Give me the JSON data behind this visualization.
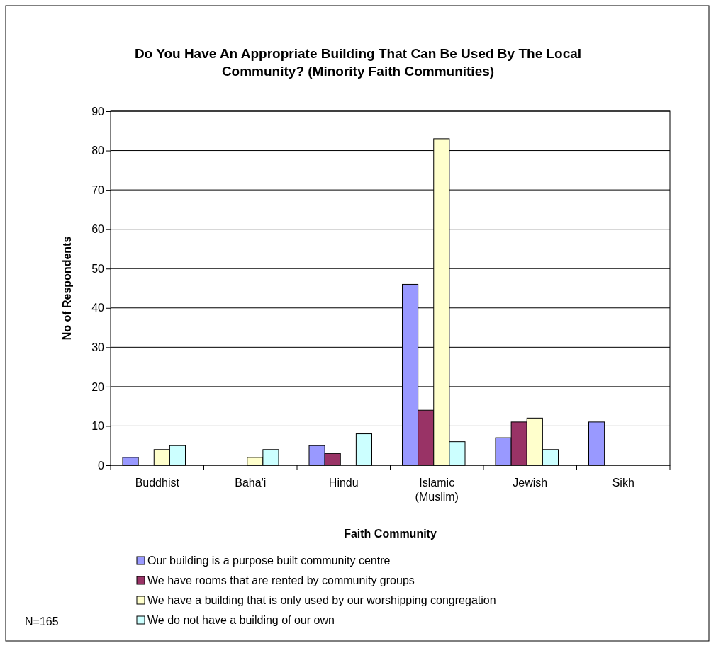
{
  "chart_data": {
    "type": "bar",
    "title": "Do You Have An Appropriate Building That Can Be Used By The Local Community? (Minority Faith Communities)",
    "xlabel": "Faith Community",
    "ylabel": "No of Respondents",
    "categories": [
      "Buddhist",
      "Baha'i",
      "Hindu",
      "Islamic (Muslim)",
      "Jewish",
      "Sikh"
    ],
    "series": [
      {
        "name": "Our building is a purpose built community centre",
        "color": "#9999ff",
        "values": [
          2,
          0,
          5,
          46,
          7,
          11
        ]
      },
      {
        "name": "We have rooms that are rented by community groups",
        "color": "#993366",
        "values": [
          0,
          0,
          3,
          14,
          11,
          0
        ]
      },
      {
        "name": "We have a building that is only used by our worshipping congregation",
        "color": "#ffffcc",
        "values": [
          4,
          2,
          0,
          83,
          12,
          0
        ]
      },
      {
        "name": "We do not have a building of our own",
        "color": "#ccffff",
        "values": [
          5,
          4,
          8,
          6,
          4,
          0
        ]
      }
    ],
    "ylim": [
      0,
      90
    ],
    "yticks": [
      0,
      10,
      20,
      30,
      40,
      50,
      60,
      70,
      80,
      90
    ],
    "grid": "y",
    "legend": "bottom",
    "annotations": [
      "N=165"
    ]
  }
}
